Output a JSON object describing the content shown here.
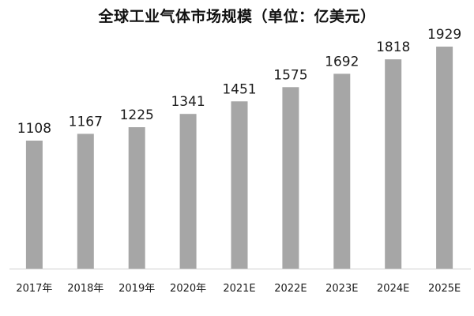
{
  "chart_data": {
    "type": "bar",
    "title": "全球工业气体市场规模（单位：亿美元）",
    "categories": [
      "2017年",
      "2018年",
      "2019年",
      "2020年",
      "2021E",
      "2022E",
      "2023E",
      "2024E",
      "2025E"
    ],
    "values": [
      1108,
      1167,
      1225,
      1341,
      1451,
      1575,
      1692,
      1818,
      1929
    ],
    "xlabel": "",
    "ylabel": "",
    "grid": false,
    "bar_color": "#a6a6a6"
  }
}
